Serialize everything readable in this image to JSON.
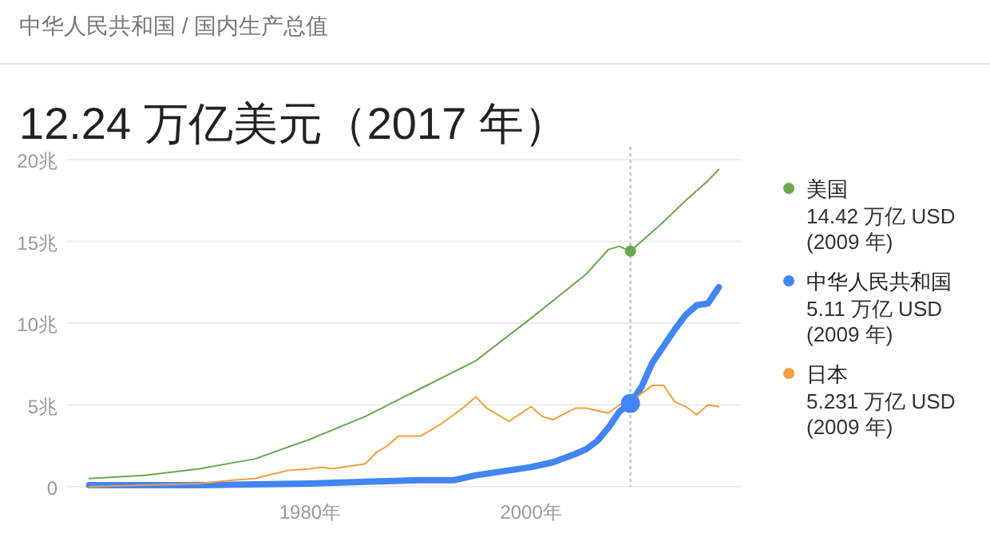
{
  "chart_data": {
    "type": "line",
    "subtitle": "中华人民共和国 / 国内生产总值",
    "title": "12.24 万亿美元（2017 年）",
    "xlim": [
      1958,
      2019
    ],
    "xticks": [
      {
        "value": 1980,
        "label": "1980年"
      },
      {
        "value": 2000,
        "label": "2000年"
      }
    ],
    "ylim": [
      0,
      20
    ],
    "yticks": [
      0,
      {
        "value": 5,
        "label": "5兆"
      },
      {
        "value": 10,
        "label": "10兆"
      },
      {
        "value": 15,
        "label": "15兆"
      },
      {
        "value": 20,
        "label": "20兆"
      }
    ],
    "grid": "y",
    "legend": "right",
    "ref_lines": [
      {
        "axis": "x",
        "value": 2009,
        "line_style": "dotted",
        "color": "#cccccc"
      }
    ],
    "series": [
      {
        "name": "美国",
        "color": "#6aa84f",
        "x": [
          1960,
          1965,
          1970,
          1975,
          1980,
          1985,
          1990,
          1995,
          2000,
          2005,
          2007,
          2008,
          2009,
          2010,
          2012,
          2014,
          2016,
          2017
        ],
        "values": [
          0.5,
          0.7,
          1.1,
          1.7,
          2.9,
          4.3,
          6,
          7.7,
          10.3,
          13,
          14.5,
          14.7,
          14.4,
          15,
          16.2,
          17.5,
          18.7,
          19.4
        ]
      },
      {
        "name": "中华人民共和国",
        "color": "#4285f4",
        "x": [
          1960,
          1970,
          1980,
          1985,
          1990,
          1993,
          1995,
          2000,
          2002,
          2004,
          2005,
          2006,
          2007,
          2008,
          2009,
          2010,
          2011,
          2012,
          2013,
          2014,
          2015,
          2016,
          2017
        ],
        "values": [
          0.1,
          0.1,
          0.2,
          0.3,
          0.4,
          0.4,
          0.7,
          1.2,
          1.5,
          2,
          2.3,
          2.8,
          3.6,
          4.6,
          5.1,
          6.1,
          7.6,
          8.6,
          9.6,
          10.5,
          11.1,
          11.2,
          12.2
        ]
      },
      {
        "name": "日本",
        "color": "#f0a040",
        "x": [
          1960,
          1965,
          1970,
          1973,
          1975,
          1978,
          1980,
          1981,
          1982,
          1985,
          1986,
          1987,
          1988,
          1990,
          1992,
          1994,
          1995,
          1996,
          1998,
          2000,
          2001,
          2002,
          2004,
          2005,
          2007,
          2008,
          2009,
          2010,
          2011,
          2012,
          2013,
          2014,
          2015,
          2016,
          2017
        ],
        "values": [
          0,
          0.1,
          0.2,
          0.4,
          0.5,
          1,
          1.1,
          1.2,
          1.1,
          1.4,
          2.1,
          2.5,
          3.1,
          3.1,
          3.9,
          4.9,
          5.5,
          4.8,
          4,
          4.9,
          4.3,
          4.1,
          4.8,
          4.8,
          4.5,
          5,
          5.2,
          5.7,
          6.2,
          6.2,
          5.2,
          4.9,
          4.4,
          5,
          4.9
        ]
      }
    ],
    "annotations": [
      "14.42 万亿 USD (2009 年)",
      "5.11 万亿 USD (2009 年)",
      "5.231 万亿 USD (2009 年)"
    ]
  }
}
